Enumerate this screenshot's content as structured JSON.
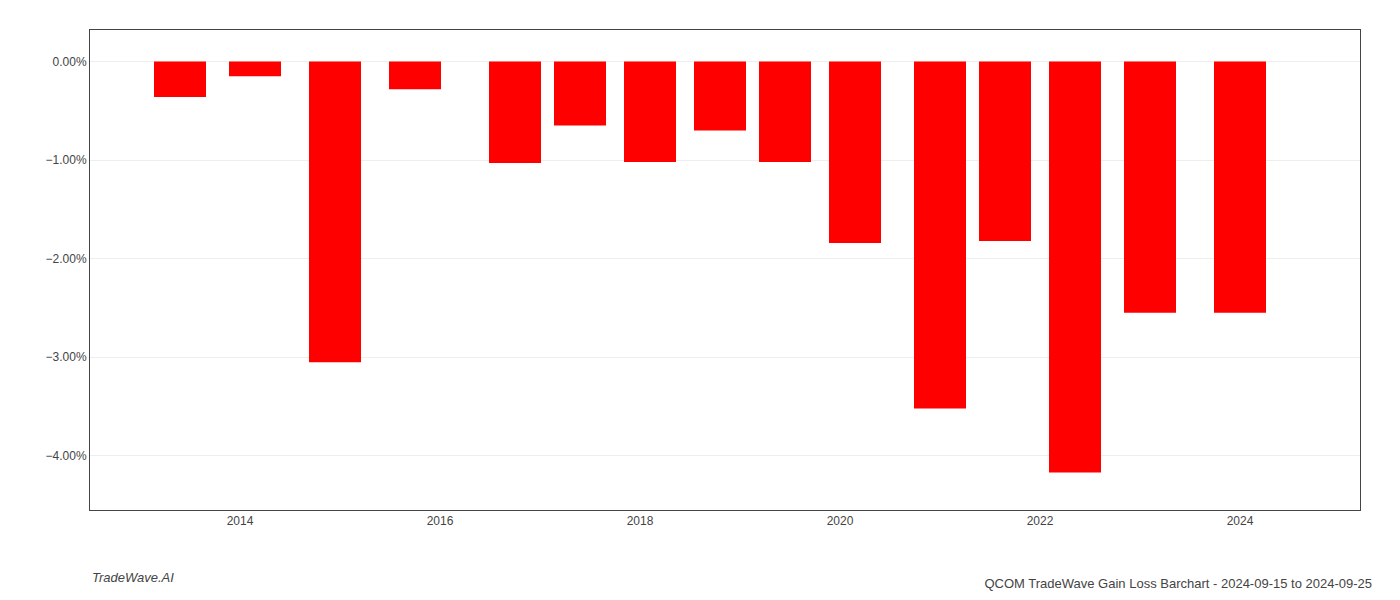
{
  "chart_data": {
    "type": "bar",
    "title": "QCOM TradeWave Gain Loss Barchart - 2024-09-15 to 2024-09-25",
    "annotations": [
      "TradeWave.AI"
    ],
    "x": [
      2013.4,
      2014.15,
      2014.95,
      2015.75,
      2016.75,
      2017.4,
      2018.1,
      2018.8,
      2019.45,
      2020.15,
      2021.0,
      2021.65,
      2022.35,
      2023.1,
      2024.0
    ],
    "values": [
      -0.36,
      -0.15,
      -3.05,
      -0.28,
      -1.03,
      -0.65,
      -1.02,
      -0.7,
      -1.02,
      -1.84,
      -3.52,
      -1.82,
      -4.17,
      -2.55,
      -2.55
    ],
    "color": "#ff0000",
    "xlim": [
      2012.5,
      2025.2
    ],
    "xticks": [
      2014,
      2016,
      2018,
      2020,
      2022,
      2024
    ],
    "ylim": [
      -4.55,
      0.32
    ],
    "yticks": [
      {
        "value": 0.0,
        "label": "0.00%"
      },
      {
        "value": -1.0,
        "label": "−1.00%"
      },
      {
        "value": -2.0,
        "label": "−2.00%"
      },
      {
        "value": -3.0,
        "label": "−3.00%"
      },
      {
        "value": -4.0,
        "label": "−4.00%"
      }
    ],
    "grid": true
  }
}
